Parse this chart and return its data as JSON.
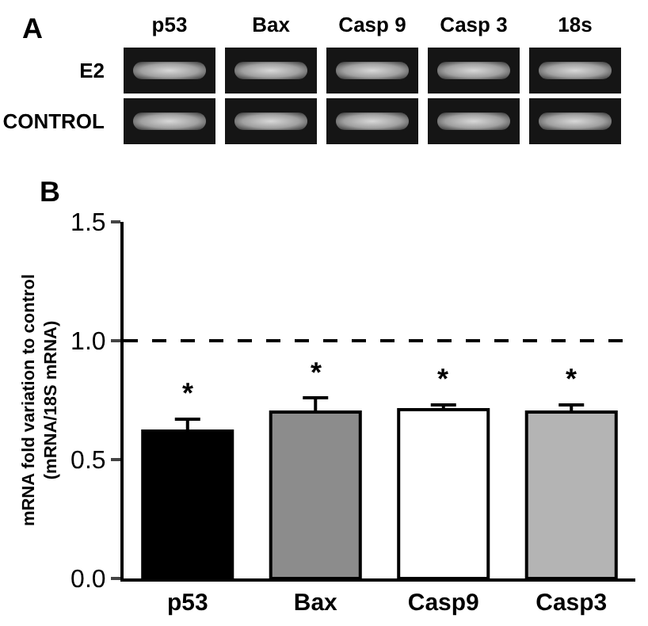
{
  "chart_data": [
    {
      "type": "other",
      "title": "A",
      "categories": [
        "p53",
        "Bax",
        "Casp 9",
        "Casp 3",
        "18s"
      ],
      "y_categories": [
        "E2",
        "CONTROL"
      ]
    },
    {
      "type": "bar",
      "title": "B",
      "ylabel": "mRNA fold variation to control\n(mRNA/18S mRNA)",
      "categories": [
        "p53",
        "Bax",
        "Casp9",
        "Casp3"
      ],
      "values": [
        0.62,
        0.7,
        0.71,
        0.7
      ],
      "colors": [
        "#000000",
        "#8c8c8c",
        "#ffffff",
        "#b4b4b4"
      ],
      "errors": [
        [
          0.62,
          0.67
        ],
        [
          0.7,
          0.76
        ],
        [
          0.71,
          0.73
        ],
        [
          0.7,
          0.73
        ]
      ],
      "ylim": [
        0,
        1.5
      ],
      "yticks": [
        {
          "value": 0,
          "label": "0.0"
        },
        {
          "value": 0.5,
          "label": "0.5"
        },
        {
          "value": 1,
          "label": "1.0"
        },
        {
          "value": 1.5,
          "label": "1.5"
        }
      ],
      "ref_lines": [
        {
          "axis": "y",
          "value": 1,
          "color": "#000000",
          "line_style": "dashed"
        }
      ],
      "annotations": [
        {
          "text": "*",
          "x": "p53",
          "y": 0.7
        },
        {
          "text": "*",
          "x": "Bax",
          "y": 0.79
        },
        {
          "text": "*",
          "x": "Casp9",
          "y": 0.76
        },
        {
          "text": "*",
          "x": "Casp3",
          "y": 0.76
        }
      ],
      "grid": false
    }
  ]
}
